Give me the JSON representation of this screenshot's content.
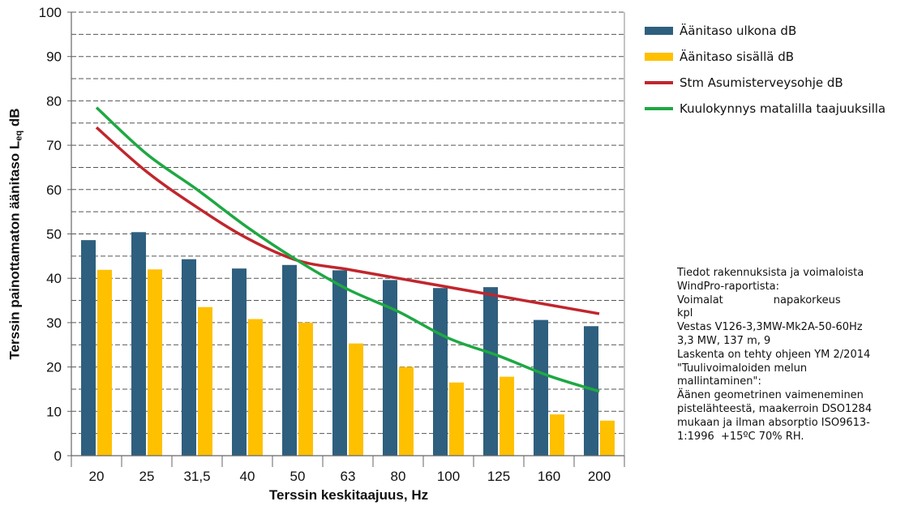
{
  "chart_data": {
    "type": "bar",
    "categories": [
      "20",
      "25",
      "31,5",
      "40",
      "50",
      "63",
      "80",
      "100",
      "125",
      "160",
      "200"
    ],
    "series": [
      {
        "name": "Äänitaso ulkona dB",
        "kind": "bar",
        "color": "#2e5f7e",
        "values": [
          48.6,
          50.4,
          44.3,
          42.2,
          43.0,
          41.8,
          39.6,
          37.8,
          38.0,
          30.6,
          29.2
        ]
      },
      {
        "name": "Äänitaso sisällä dB",
        "kind": "bar",
        "color": "#ffc000",
        "values": [
          41.9,
          42.0,
          33.5,
          30.8,
          30.0,
          25.3,
          20.0,
          16.5,
          17.8,
          9.3,
          7.9
        ]
      },
      {
        "name": "Stm Asumisterveysohje dB",
        "kind": "line",
        "color": "#c0262d",
        "values": [
          74,
          64,
          56,
          49,
          44,
          42,
          40,
          38,
          36,
          34,
          32
        ]
      },
      {
        "name": "Kuulokynnys matalilla taajuuksilla",
        "kind": "line",
        "color": "#1ea843",
        "values": [
          78.5,
          68,
          60,
          51.5,
          44,
          37.5,
          32.5,
          26.5,
          22.5,
          18,
          14.5
        ]
      }
    ],
    "ylim": [
      0,
      100
    ],
    "yticks": [
      0,
      10,
      20,
      30,
      40,
      50,
      60,
      70,
      80,
      90,
      100
    ],
    "grid": "dashed horizontal lines every 5",
    "legend": "right",
    "ylabel_main": "Terssin painottamaton äänitaso L",
    "ylabel_sub": "eq",
    "ylabel_unit": " dB",
    "xlabel": "Terssin keskitaajuus, Hz"
  },
  "note_lines": [
    "Tiedot rakennuksista ja voimaloista",
    "WindPro-raportista:",
    "Voimalat               napakorkeus",
    "kpl",
    "Vestas V126-3,3MW-Mk2A-50-60Hz",
    "3,3 MW, 137 m, 9",
    "Laskenta on tehty ohjeen YM 2/2014",
    "\"Tuulivoimaloiden melun",
    "mallintaminen\":",
    "Äänen geometrinen vaimeneminen",
    "pistelähteestä, maakerroin DSO1284",
    "mukaan ja ilman absorptio ISO9613-",
    "1:1996  +15ºC 70% RH."
  ]
}
